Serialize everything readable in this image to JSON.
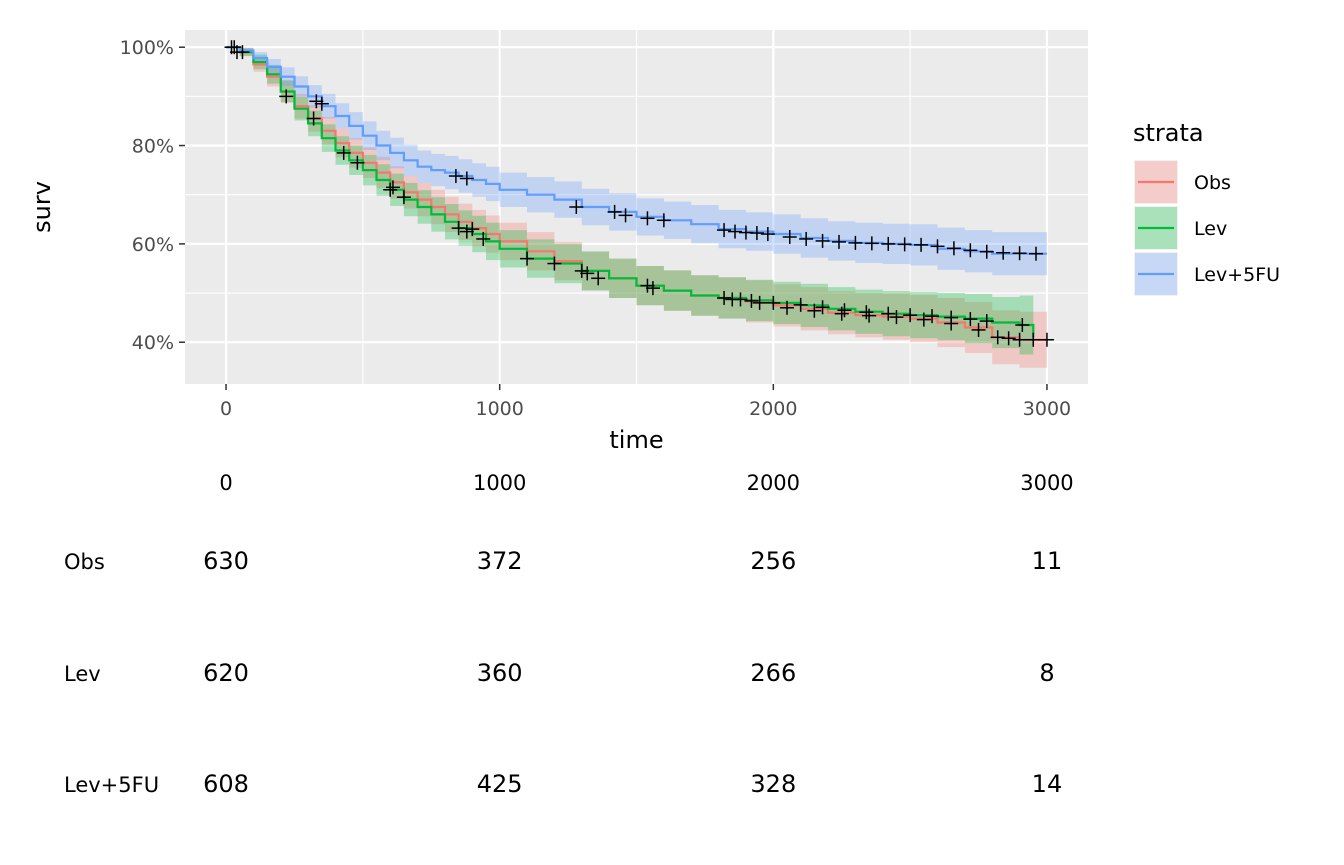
{
  "chart_data": {
    "type": "line",
    "xlabel": "time",
    "ylabel": "surv",
    "xlim": [
      -150,
      3150
    ],
    "ylim": [
      0.315,
      1.035
    ],
    "x_ticks": [
      0,
      1000,
      2000,
      3000
    ],
    "x_tick_labels": [
      "0",
      "1000",
      "2000",
      "3000"
    ],
    "y_ticks": [
      0.4,
      0.6,
      0.8,
      1.0
    ],
    "y_tick_labels": [
      "40%",
      "60%",
      "80%",
      "100%"
    ],
    "grid": true,
    "legend": {
      "title": "strata",
      "position": "right"
    },
    "series": [
      {
        "name": "Obs",
        "color": "#F8766D",
        "x": [
          0,
          50,
          100,
          150,
          200,
          250,
          300,
          350,
          400,
          450,
          500,
          550,
          600,
          650,
          700,
          750,
          800,
          850,
          900,
          950,
          1000,
          1100,
          1200,
          1300,
          1400,
          1500,
          1600,
          1700,
          1800,
          1900,
          2000,
          2100,
          2200,
          2300,
          2400,
          2500,
          2600,
          2700,
          2800,
          2900,
          3000
        ],
        "y": [
          1.0,
          0.99,
          0.965,
          0.94,
          0.91,
          0.88,
          0.855,
          0.83,
          0.805,
          0.785,
          0.765,
          0.745,
          0.725,
          0.705,
          0.69,
          0.675,
          0.66,
          0.645,
          0.632,
          0.62,
          0.605,
          0.585,
          0.565,
          0.545,
          0.53,
          0.515,
          0.505,
          0.495,
          0.49,
          0.483,
          0.475,
          0.468,
          0.46,
          0.455,
          0.452,
          0.448,
          0.44,
          0.43,
          0.41,
          0.405,
          0.405
        ],
        "lower": [
          1.0,
          0.982,
          0.95,
          0.92,
          0.887,
          0.855,
          0.828,
          0.802,
          0.776,
          0.755,
          0.734,
          0.713,
          0.692,
          0.672,
          0.656,
          0.64,
          0.624,
          0.608,
          0.595,
          0.582,
          0.567,
          0.546,
          0.526,
          0.506,
          0.49,
          0.475,
          0.464,
          0.454,
          0.448,
          0.44,
          0.432,
          0.424,
          0.416,
          0.41,
          0.405,
          0.4,
          0.39,
          0.378,
          0.355,
          0.348,
          0.348
        ],
        "upper": [
          1.0,
          0.998,
          0.98,
          0.96,
          0.933,
          0.905,
          0.882,
          0.858,
          0.834,
          0.815,
          0.796,
          0.777,
          0.758,
          0.738,
          0.724,
          0.71,
          0.696,
          0.682,
          0.669,
          0.658,
          0.643,
          0.624,
          0.604,
          0.584,
          0.57,
          0.555,
          0.546,
          0.536,
          0.532,
          0.526,
          0.518,
          0.512,
          0.504,
          0.5,
          0.499,
          0.496,
          0.49,
          0.482,
          0.465,
          0.462,
          0.462
        ],
        "censor_x": [
          30,
          60,
          320,
          610,
          900,
          1300,
          1560,
          1850,
          1950,
          2050,
          2150,
          2250,
          2350,
          2450,
          2550,
          2650,
          2750,
          2820,
          2860,
          2900,
          2950,
          3000
        ],
        "censor_y": [
          1.0,
          0.99,
          0.855,
          0.715,
          0.63,
          0.545,
          0.51,
          0.487,
          0.48,
          0.47,
          0.464,
          0.458,
          0.454,
          0.451,
          0.446,
          0.438,
          0.425,
          0.41,
          0.408,
          0.405,
          0.405,
          0.405
        ]
      },
      {
        "name": "Lev",
        "color": "#00BA38",
        "x": [
          0,
          50,
          100,
          150,
          200,
          250,
          300,
          350,
          400,
          450,
          500,
          550,
          600,
          650,
          700,
          750,
          800,
          850,
          900,
          950,
          1000,
          1100,
          1200,
          1300,
          1400,
          1500,
          1600,
          1700,
          1800,
          1900,
          2000,
          2100,
          2200,
          2300,
          2400,
          2500,
          2600,
          2700,
          2800,
          2900,
          2950
        ],
        "y": [
          1.0,
          0.99,
          0.97,
          0.945,
          0.91,
          0.875,
          0.845,
          0.815,
          0.79,
          0.77,
          0.75,
          0.73,
          0.71,
          0.69,
          0.675,
          0.66,
          0.645,
          0.632,
          0.62,
          0.605,
          0.59,
          0.57,
          0.56,
          0.545,
          0.53,
          0.515,
          0.505,
          0.495,
          0.49,
          0.485,
          0.48,
          0.475,
          0.468,
          0.462,
          0.458,
          0.455,
          0.452,
          0.448,
          0.44,
          0.435,
          0.41
        ],
        "lower": [
          1.0,
          0.982,
          0.955,
          0.926,
          0.888,
          0.851,
          0.819,
          0.787,
          0.761,
          0.74,
          0.719,
          0.698,
          0.677,
          0.656,
          0.641,
          0.625,
          0.609,
          0.596,
          0.583,
          0.567,
          0.552,
          0.531,
          0.52,
          0.505,
          0.49,
          0.475,
          0.464,
          0.454,
          0.448,
          0.443,
          0.437,
          0.431,
          0.424,
          0.417,
          0.412,
          0.408,
          0.404,
          0.398,
          0.388,
          0.375,
          0.35
        ],
        "upper": [
          1.0,
          0.998,
          0.985,
          0.964,
          0.932,
          0.899,
          0.871,
          0.843,
          0.819,
          0.8,
          0.781,
          0.762,
          0.743,
          0.724,
          0.709,
          0.695,
          0.681,
          0.668,
          0.657,
          0.643,
          0.628,
          0.609,
          0.6,
          0.585,
          0.57,
          0.555,
          0.546,
          0.536,
          0.532,
          0.527,
          0.523,
          0.519,
          0.512,
          0.507,
          0.504,
          0.502,
          0.5,
          0.498,
          0.492,
          0.495,
          0.47
        ],
        "censor_x": [
          40,
          220,
          430,
          480,
          600,
          650,
          850,
          880,
          940,
          1100,
          1200,
          1320,
          1360,
          1540,
          1820,
          1880,
          1920,
          2000,
          2100,
          2180,
          2260,
          2340,
          2420,
          2500,
          2580,
          2650,
          2720,
          2780,
          2910
        ],
        "censor_y": [
          0.99,
          0.9,
          0.785,
          0.765,
          0.71,
          0.695,
          0.632,
          0.625,
          0.61,
          0.57,
          0.56,
          0.54,
          0.53,
          0.515,
          0.49,
          0.487,
          0.484,
          0.48,
          0.476,
          0.471,
          0.465,
          0.461,
          0.458,
          0.455,
          0.453,
          0.45,
          0.447,
          0.443,
          0.435
        ]
      },
      {
        "name": "Lev+5FU",
        "color": "#619CFF",
        "x": [
          0,
          50,
          100,
          150,
          200,
          250,
          300,
          350,
          400,
          450,
          500,
          550,
          600,
          650,
          700,
          750,
          800,
          850,
          900,
          950,
          1000,
          1100,
          1200,
          1300,
          1400,
          1500,
          1600,
          1700,
          1800,
          1900,
          2000,
          2100,
          2200,
          2300,
          2400,
          2500,
          2600,
          2700,
          2800,
          2900,
          3000
        ],
        "y": [
          1.0,
          0.993,
          0.978,
          0.96,
          0.94,
          0.92,
          0.9,
          0.88,
          0.86,
          0.84,
          0.82,
          0.8,
          0.785,
          0.77,
          0.757,
          0.75,
          0.745,
          0.738,
          0.73,
          0.722,
          0.71,
          0.7,
          0.69,
          0.675,
          0.665,
          0.655,
          0.648,
          0.64,
          0.63,
          0.625,
          0.62,
          0.612,
          0.606,
          0.602,
          0.6,
          0.598,
          0.59,
          0.585,
          0.58,
          0.58,
          0.58
        ],
        "lower": [
          1.0,
          0.987,
          0.966,
          0.944,
          0.921,
          0.899,
          0.877,
          0.855,
          0.834,
          0.812,
          0.791,
          0.77,
          0.754,
          0.738,
          0.724,
          0.717,
          0.711,
          0.704,
          0.696,
          0.687,
          0.675,
          0.664,
          0.653,
          0.638,
          0.627,
          0.617,
          0.61,
          0.601,
          0.591,
          0.586,
          0.58,
          0.572,
          0.566,
          0.561,
          0.559,
          0.556,
          0.547,
          0.542,
          0.536,
          0.536,
          0.536
        ],
        "upper": [
          1.0,
          0.999,
          0.99,
          0.976,
          0.959,
          0.941,
          0.923,
          0.905,
          0.886,
          0.868,
          0.849,
          0.83,
          0.816,
          0.802,
          0.79,
          0.783,
          0.779,
          0.772,
          0.764,
          0.757,
          0.745,
          0.736,
          0.727,
          0.712,
          0.703,
          0.693,
          0.686,
          0.679,
          0.669,
          0.664,
          0.66,
          0.652,
          0.646,
          0.643,
          0.641,
          0.64,
          0.633,
          0.628,
          0.624,
          0.624,
          0.624
        ],
        "censor_x": [
          20,
          330,
          350,
          840,
          880,
          1280,
          1420,
          1460,
          1540,
          1600,
          1820,
          1860,
          1900,
          1940,
          1980,
          2060,
          2120,
          2180,
          2240,
          2300,
          2360,
          2420,
          2480,
          2540,
          2600,
          2660,
          2720,
          2780,
          2840,
          2900,
          2960
        ],
        "censor_y": [
          1.0,
          0.89,
          0.885,
          0.738,
          0.733,
          0.675,
          0.665,
          0.658,
          0.652,
          0.648,
          0.628,
          0.625,
          0.623,
          0.622,
          0.62,
          0.614,
          0.61,
          0.606,
          0.604,
          0.602,
          0.601,
          0.6,
          0.599,
          0.598,
          0.595,
          0.591,
          0.587,
          0.584,
          0.582,
          0.581,
          0.58
        ]
      }
    ],
    "risk_table": {
      "times": [
        "0",
        "1000",
        "2000",
        "3000"
      ],
      "rows": [
        {
          "name": "Obs",
          "values": [
            "630",
            "372",
            "256",
            "11"
          ]
        },
        {
          "name": "Lev",
          "values": [
            "620",
            "360",
            "266",
            "8"
          ]
        },
        {
          "name": "Lev+5FU",
          "values": [
            "608",
            "425",
            "328",
            "14"
          ]
        }
      ]
    }
  }
}
